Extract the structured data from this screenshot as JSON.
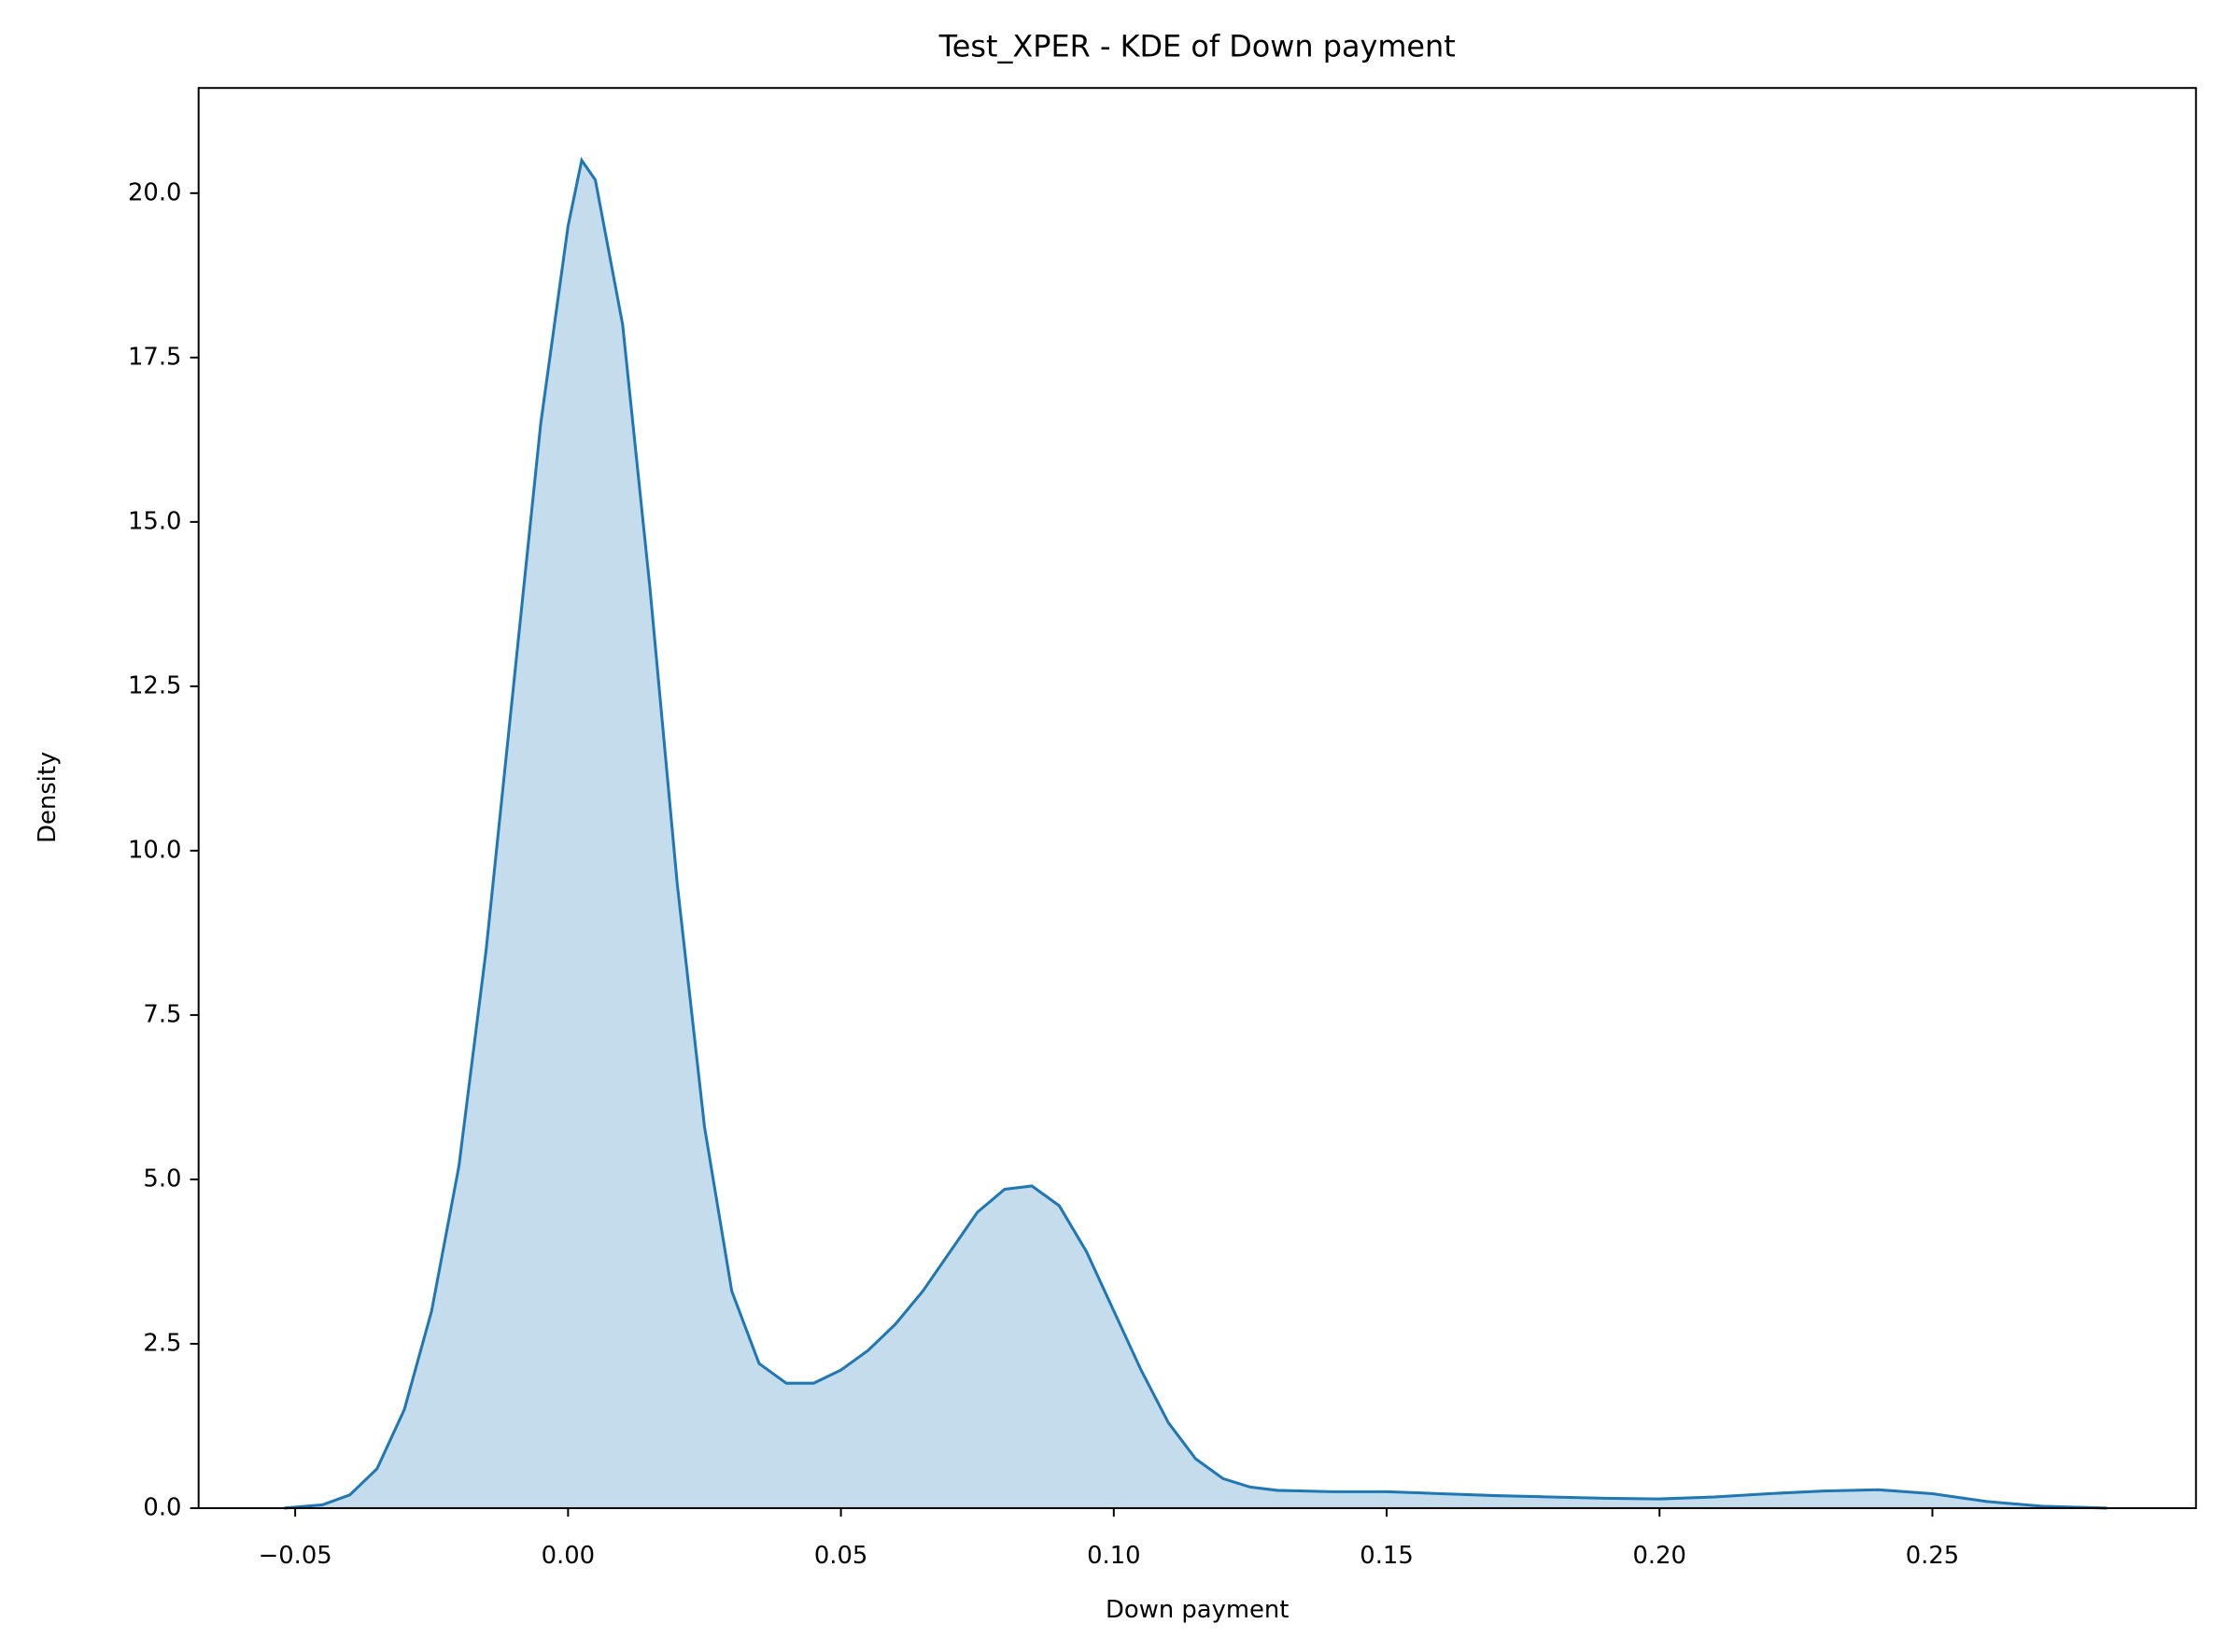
{
  "chart_data": {
    "type": "kde",
    "title": "Test_XPER - KDE of Down payment",
    "x_label": "Down payment",
    "y_label": "Density",
    "color": "#1f77b4",
    "x": [
      -0.052,
      -0.045,
      -0.04,
      -0.035,
      -0.03,
      -0.025,
      -0.02,
      -0.015,
      -0.01,
      -0.005,
      0.0,
      0.0025,
      0.005,
      0.01,
      0.015,
      0.02,
      0.025,
      0.03,
      0.035,
      0.04,
      0.045,
      0.05,
      0.055,
      0.06,
      0.065,
      0.07,
      0.075,
      0.08,
      0.085,
      0.09,
      0.095,
      0.1,
      0.105,
      0.11,
      0.115,
      0.12,
      0.125,
      0.13,
      0.14,
      0.15,
      0.16,
      0.17,
      0.18,
      0.19,
      0.2,
      0.21,
      0.22,
      0.23,
      0.24,
      0.25,
      0.26,
      0.27,
      0.282
    ],
    "values": [
      0.0,
      0.05,
      0.2,
      0.6,
      1.5,
      3.0,
      5.2,
      8.5,
      12.5,
      16.5,
      19.5,
      20.5,
      20.2,
      18.0,
      14.0,
      9.5,
      5.8,
      3.3,
      2.2,
      1.9,
      1.9,
      2.1,
      2.4,
      2.8,
      3.3,
      3.9,
      4.5,
      4.85,
      4.9,
      4.6,
      3.9,
      3.0,
      2.1,
      1.3,
      0.75,
      0.45,
      0.32,
      0.27,
      0.25,
      0.25,
      0.22,
      0.19,
      0.17,
      0.15,
      0.14,
      0.17,
      0.22,
      0.26,
      0.28,
      0.22,
      0.1,
      0.03,
      0.0
    ],
    "xlim": [
      -0.0677,
      0.2983
    ],
    "ylim": [
      0,
      21.6
    ],
    "xticks": [
      {
        "value": -0.05,
        "label": "−0.05"
      },
      {
        "value": 0.0,
        "label": "0.00"
      },
      {
        "value": 0.05,
        "label": "0.05"
      },
      {
        "value": 0.1,
        "label": "0.10"
      },
      {
        "value": 0.15,
        "label": "0.15"
      },
      {
        "value": 0.2,
        "label": "0.20"
      },
      {
        "value": 0.25,
        "label": "0.25"
      }
    ],
    "yticks": [
      {
        "value": 0,
        "label": "0.0"
      },
      2.5,
      {
        "value": 5,
        "label": "5.0"
      },
      7.5,
      {
        "value": 10,
        "label": "10.0"
      },
      12.5,
      {
        "value": 15,
        "label": "15.0"
      },
      17.5,
      {
        "value": 20,
        "label": "20.0"
      }
    ]
  }
}
